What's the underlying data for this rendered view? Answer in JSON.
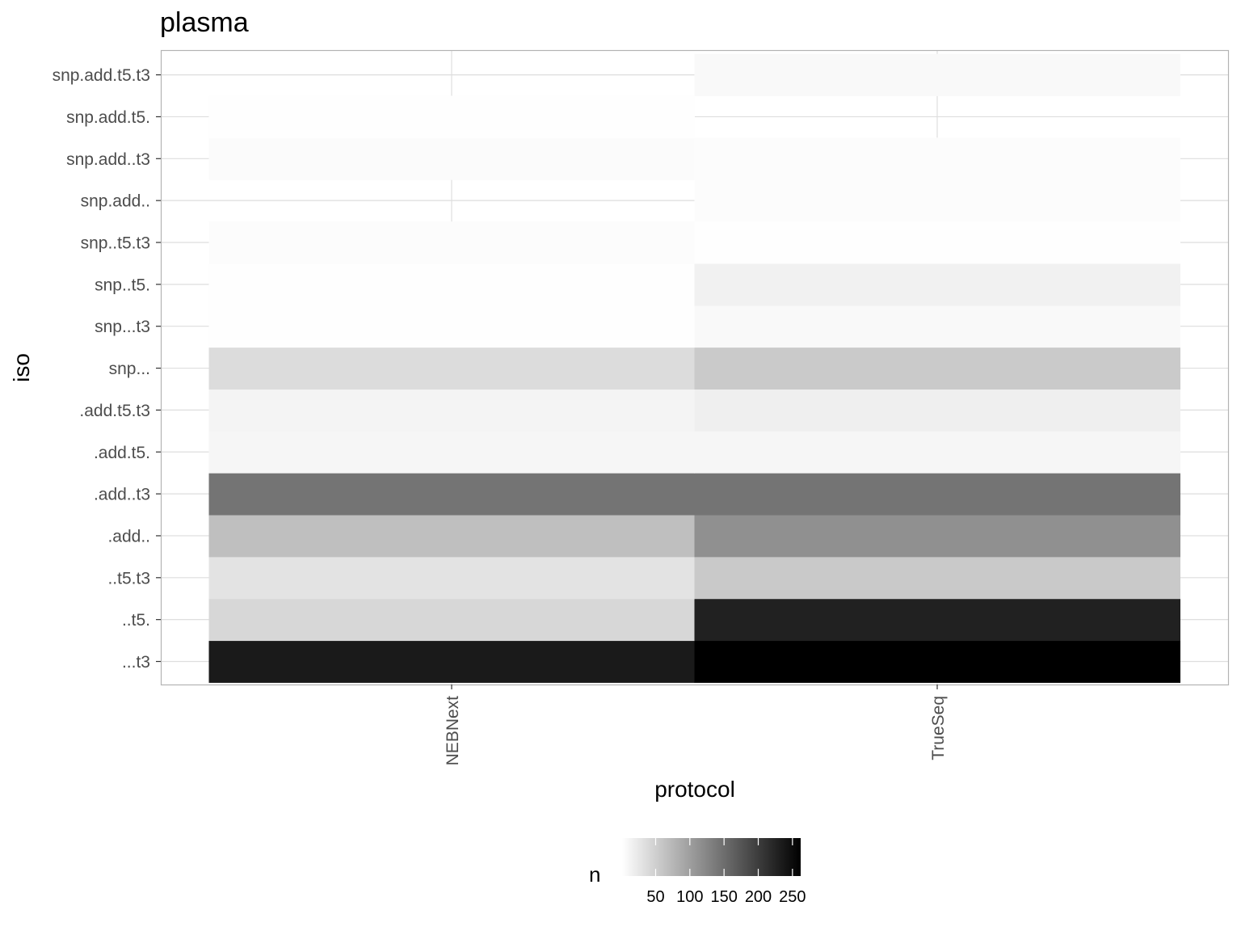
{
  "chart_data": {
    "type": "heatmap",
    "title": "plasma",
    "xlabel": "protocol",
    "ylabel": "iso",
    "x_categories": [
      "NEBNext",
      "TrueSeq"
    ],
    "y_categories": [
      "...t3",
      "..t5.",
      "..t5.t3",
      ".add..",
      ".add..t3",
      ".add.t5.",
      ".add.t5.t3",
      "snp...",
      "snp...t3",
      "snp..t5.",
      "snp..t5.t3",
      "snp.add..",
      "snp.add..t3",
      "snp.add.t5.",
      "snp.add.t5.t3"
    ],
    "cells": [
      {
        "x": "NEBNext",
        "y": "...t3",
        "n": 235
      },
      {
        "x": "TrueSeq",
        "y": "...t3",
        "n": 262
      },
      {
        "x": "NEBNext",
        "y": "..t5.",
        "n": 42
      },
      {
        "x": "TrueSeq",
        "y": "..t5.",
        "n": 228
      },
      {
        "x": "NEBNext",
        "y": "..t5.t3",
        "n": 30
      },
      {
        "x": "TrueSeq",
        "y": "..t5.t3",
        "n": 56
      },
      {
        "x": "NEBNext",
        "y": ".add..",
        "n": 66
      },
      {
        "x": "TrueSeq",
        "y": ".add..",
        "n": 115
      },
      {
        "x": "NEBNext",
        "y": ".add..t3",
        "n": 143
      },
      {
        "x": "TrueSeq",
        "y": ".add..t3",
        "n": 143
      },
      {
        "x": "NEBNext",
        "y": ".add.t5.",
        "n": 10
      },
      {
        "x": "TrueSeq",
        "y": ".add.t5.",
        "n": 10
      },
      {
        "x": "NEBNext",
        "y": ".add.t5.t3",
        "n": 12
      },
      {
        "x": "TrueSeq",
        "y": ".add.t5.t3",
        "n": 17
      },
      {
        "x": "NEBNext",
        "y": "snp...",
        "n": 37
      },
      {
        "x": "TrueSeq",
        "y": "snp...",
        "n": 55
      },
      {
        "x": "NEBNext",
        "y": "snp...t3",
        "n": 2
      },
      {
        "x": "TrueSeq",
        "y": "snp...t3",
        "n": 7
      },
      {
        "x": "NEBNext",
        "y": "snp..t5.",
        "n": 2
      },
      {
        "x": "TrueSeq",
        "y": "snp..t5.",
        "n": 15
      },
      {
        "x": "NEBNext",
        "y": "snp..t5.t3",
        "n": 4
      },
      {
        "x": "TrueSeq",
        "y": "snp..t5.t3",
        "n": 2
      },
      {
        "x": "TrueSeq",
        "y": "snp.add..",
        "n": 4
      },
      {
        "x": "NEBNext",
        "y": "snp.add..t3",
        "n": 5
      },
      {
        "x": "TrueSeq",
        "y": "snp.add..t3",
        "n": 4
      },
      {
        "x": "NEBNext",
        "y": "snp.add.t5.",
        "n": 2
      },
      {
        "x": "TrueSeq",
        "y": "snp.add.t5.t3",
        "n": 7
      }
    ],
    "legend": {
      "title": "n",
      "breaks": [
        50,
        100,
        150,
        200,
        250
      ],
      "range": [
        1,
        262
      ],
      "low_color": "#ffffff",
      "high_color": "#000000",
      "position": "bottom"
    },
    "grid": true
  }
}
